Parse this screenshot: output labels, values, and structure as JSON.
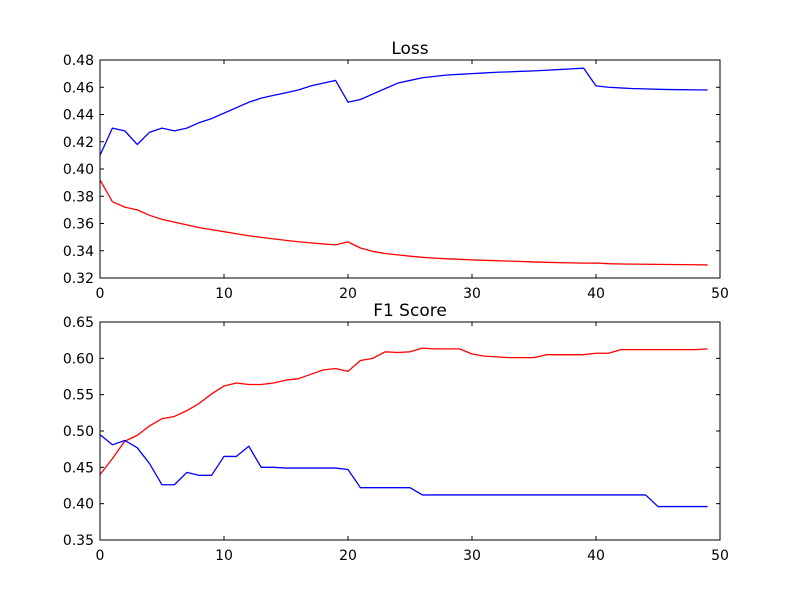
{
  "chart_data": [
    {
      "type": "line",
      "title": "Loss",
      "xlim": [
        0,
        50
      ],
      "ylim": [
        0.32,
        0.48
      ],
      "xticks": [
        "0",
        "10",
        "20",
        "30",
        "40",
        "50"
      ],
      "yticks": [
        "0.32",
        "0.34",
        "0.36",
        "0.38",
        "0.40",
        "0.42",
        "0.44",
        "0.46",
        "0.48"
      ],
      "grid": false,
      "series": [
        {
          "color": "#0000ff",
          "x": [
            0,
            1,
            2,
            3,
            4,
            5,
            6,
            7,
            8,
            9,
            10,
            11,
            12,
            13,
            14,
            15,
            16,
            17,
            18,
            19,
            20,
            21,
            22,
            23,
            24,
            25,
            26,
            27,
            28,
            29,
            30,
            31,
            32,
            33,
            34,
            35,
            36,
            37,
            38,
            39,
            40,
            41,
            42,
            43,
            44,
            45,
            46,
            47,
            48,
            49
          ],
          "y": [
            0.41,
            0.43,
            0.428,
            0.418,
            0.427,
            0.43,
            0.428,
            0.43,
            0.434,
            0.437,
            0.441,
            0.445,
            0.449,
            0.452,
            0.454,
            0.456,
            0.458,
            0.461,
            0.463,
            0.465,
            0.449,
            0.451,
            0.455,
            0.459,
            0.463,
            0.465,
            0.467,
            0.468,
            0.469,
            0.4695,
            0.47,
            0.4705,
            0.471,
            0.4713,
            0.4717,
            0.472,
            0.4725,
            0.473,
            0.4735,
            0.474,
            0.461,
            0.46,
            0.4595,
            0.459,
            0.4588,
            0.4585,
            0.4583,
            0.4582,
            0.4581,
            0.458
          ]
        },
        {
          "color": "#ff0000",
          "x": [
            0,
            1,
            2,
            3,
            4,
            5,
            6,
            7,
            8,
            9,
            10,
            11,
            12,
            13,
            14,
            15,
            16,
            17,
            18,
            19,
            20,
            21,
            22,
            23,
            24,
            25,
            26,
            27,
            28,
            29,
            30,
            31,
            32,
            33,
            34,
            35,
            36,
            37,
            38,
            39,
            40,
            41,
            42,
            43,
            44,
            45,
            46,
            47,
            48,
            49
          ],
          "y": [
            0.392,
            0.376,
            0.372,
            0.37,
            0.366,
            0.363,
            0.361,
            0.359,
            0.357,
            0.3555,
            0.354,
            0.3525,
            0.351,
            0.3498,
            0.3487,
            0.3476,
            0.3466,
            0.3458,
            0.345,
            0.3443,
            0.3465,
            0.342,
            0.3395,
            0.338,
            0.337,
            0.336,
            0.3352,
            0.3346,
            0.3341,
            0.3337,
            0.3333,
            0.333,
            0.3327,
            0.3324,
            0.3321,
            0.3318,
            0.3315,
            0.3313,
            0.3311,
            0.3309,
            0.331,
            0.3305,
            0.3303,
            0.3302,
            0.3301,
            0.33,
            0.3299,
            0.3298,
            0.3297,
            0.3296
          ]
        }
      ]
    },
    {
      "type": "line",
      "title": "F1 Score",
      "xlim": [
        0,
        50
      ],
      "ylim": [
        0.35,
        0.65
      ],
      "xticks": [
        "0",
        "10",
        "20",
        "30",
        "40",
        "50"
      ],
      "yticks": [
        "0.35",
        "0.40",
        "0.45",
        "0.50",
        "0.55",
        "0.60",
        "0.65"
      ],
      "grid": false,
      "series": [
        {
          "color": "#ff0000",
          "x": [
            0,
            1,
            2,
            3,
            4,
            5,
            6,
            7,
            8,
            9,
            10,
            11,
            12,
            13,
            14,
            15,
            16,
            17,
            18,
            19,
            20,
            21,
            22,
            23,
            24,
            25,
            26,
            27,
            28,
            29,
            30,
            31,
            32,
            33,
            34,
            35,
            36,
            37,
            38,
            39,
            40,
            41,
            42,
            43,
            44,
            45,
            46,
            47,
            48,
            49
          ],
          "y": [
            0.44,
            0.462,
            0.486,
            0.494,
            0.507,
            0.517,
            0.52,
            0.528,
            0.538,
            0.551,
            0.562,
            0.566,
            0.564,
            0.564,
            0.566,
            0.57,
            0.572,
            0.578,
            0.584,
            0.586,
            0.582,
            0.597,
            0.6,
            0.609,
            0.608,
            0.609,
            0.614,
            0.613,
            0.613,
            0.613,
            0.606,
            0.603,
            0.602,
            0.601,
            0.601,
            0.601,
            0.605,
            0.605,
            0.605,
            0.605,
            0.607,
            0.607,
            0.612,
            0.612,
            0.612,
            0.612,
            0.612,
            0.612,
            0.612,
            0.613
          ]
        },
        {
          "color": "#0000ff",
          "x": [
            0,
            1,
            2,
            3,
            4,
            5,
            6,
            7,
            8,
            9,
            10,
            11,
            12,
            13,
            14,
            15,
            16,
            17,
            18,
            19,
            20,
            21,
            22,
            23,
            24,
            25,
            26,
            27,
            28,
            29,
            30,
            31,
            32,
            33,
            34,
            35,
            36,
            37,
            38,
            39,
            40,
            41,
            42,
            43,
            44,
            45,
            46,
            47,
            48,
            49
          ],
          "y": [
            0.495,
            0.481,
            0.487,
            0.477,
            0.455,
            0.426,
            0.426,
            0.443,
            0.439,
            0.439,
            0.465,
            0.465,
            0.479,
            0.45,
            0.45,
            0.449,
            0.449,
            0.449,
            0.449,
            0.449,
            0.447,
            0.422,
            0.422,
            0.422,
            0.422,
            0.422,
            0.412,
            0.412,
            0.412,
            0.412,
            0.412,
            0.412,
            0.412,
            0.412,
            0.412,
            0.412,
            0.412,
            0.412,
            0.412,
            0.412,
            0.412,
            0.412,
            0.412,
            0.412,
            0.412,
            0.396,
            0.396,
            0.396,
            0.396,
            0.396
          ]
        }
      ]
    }
  ]
}
